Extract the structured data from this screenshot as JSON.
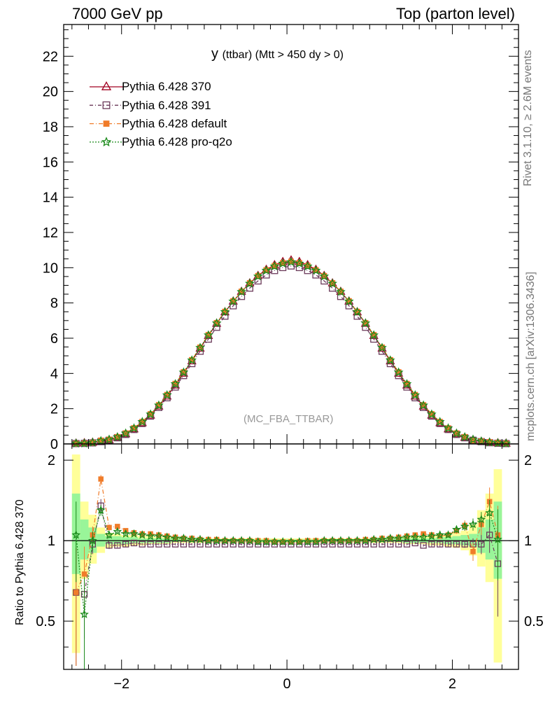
{
  "header": {
    "left": "7000 GeV pp",
    "right": "Top (parton level)"
  },
  "side_labels": {
    "rivet": "Rivet 3.1.10, ≥ 2.6M events",
    "source": "mcplots.cern.ch [arXiv:1306.3436]"
  },
  "chart_data": [
    {
      "type": "line",
      "panel": "main",
      "title": "y (ttbar) (Mtt > 450 dy > 0)",
      "title_main": "y",
      "title_rest": "(ttbar) (Mtt > 450 dy > 0)",
      "watermark": "(MC_FBA_TTBAR)",
      "xlim": [
        -2.7,
        2.8
      ],
      "ylim": [
        0,
        23.8
      ],
      "y_ticks": [
        0,
        2,
        4,
        6,
        8,
        10,
        12,
        14,
        16,
        18,
        20,
        22
      ],
      "y_tick_labels": [
        "0",
        "2",
        "4",
        "6",
        "8",
        "10",
        "12",
        "14",
        "16",
        "18",
        "20",
        "22"
      ],
      "x": [
        -2.55,
        -2.45,
        -2.35,
        -2.25,
        -2.15,
        -2.05,
        -1.95,
        -1.85,
        -1.75,
        -1.65,
        -1.55,
        -1.45,
        -1.35,
        -1.25,
        -1.15,
        -1.05,
        -0.95,
        -0.85,
        -0.75,
        -0.65,
        -0.55,
        -0.45,
        -0.35,
        -0.25,
        -0.15,
        -0.05,
        0.05,
        0.15,
        0.25,
        0.35,
        0.45,
        0.55,
        0.65,
        0.75,
        0.85,
        0.95,
        1.05,
        1.15,
        1.25,
        1.35,
        1.45,
        1.55,
        1.65,
        1.75,
        1.85,
        1.95,
        2.05,
        2.15,
        2.25,
        2.35,
        2.45,
        2.55,
        2.65
      ],
      "legend_position": "top-left",
      "series": [
        {
          "name": "Pythia 6.428 370",
          "color": "#a00020",
          "marker": "triangle-open",
          "dash": "",
          "values": [
            0.03,
            0.05,
            0.08,
            0.13,
            0.22,
            0.36,
            0.56,
            0.84,
            1.19,
            1.62,
            2.13,
            2.7,
            3.33,
            4.0,
            4.7,
            5.42,
            6.14,
            6.83,
            7.48,
            8.09,
            8.64,
            9.12,
            9.54,
            9.89,
            10.15,
            10.33,
            10.42,
            10.33,
            10.15,
            9.89,
            9.54,
            9.12,
            8.64,
            8.09,
            7.48,
            6.83,
            6.14,
            5.42,
            4.7,
            4.0,
            3.33,
            2.7,
            2.13,
            1.62,
            1.19,
            0.84,
            0.56,
            0.36,
            0.22,
            0.13,
            0.08,
            0.05,
            0.03
          ]
        },
        {
          "name": "Pythia 6.428 391",
          "color": "#6b3a5a",
          "marker": "square-open",
          "dash": "5,3,1,3",
          "values": [
            0.02,
            0.03,
            0.06,
            0.13,
            0.21,
            0.35,
            0.54,
            0.82,
            1.16,
            1.58,
            2.07,
            2.62,
            3.23,
            3.88,
            4.56,
            5.26,
            5.95,
            6.62,
            7.25,
            7.84,
            8.37,
            8.84,
            9.25,
            9.59,
            9.84,
            10.01,
            10.1,
            10.01,
            9.84,
            9.59,
            9.25,
            8.84,
            8.37,
            7.84,
            7.25,
            6.62,
            5.95,
            5.26,
            4.56,
            3.88,
            3.23,
            2.62,
            2.07,
            1.58,
            1.16,
            0.82,
            0.54,
            0.35,
            0.21,
            0.13,
            0.07,
            0.04,
            0.02
          ]
        },
        {
          "name": "Pythia 6.428 default",
          "color": "#f07c2a",
          "marker": "square-filled",
          "dash": "6,3,1,3",
          "values": [
            0.02,
            0.03,
            0.07,
            0.2,
            0.25,
            0.4,
            0.61,
            0.9,
            1.26,
            1.7,
            2.21,
            2.79,
            3.42,
            4.08,
            4.77,
            5.48,
            6.19,
            6.87,
            7.51,
            8.11,
            8.65,
            9.13,
            9.54,
            9.87,
            10.11,
            10.27,
            10.35,
            10.27,
            10.11,
            9.87,
            9.54,
            9.13,
            8.65,
            8.11,
            7.51,
            6.87,
            6.19,
            5.48,
            4.77,
            4.08,
            3.42,
            2.79,
            2.21,
            1.7,
            1.26,
            0.9,
            0.61,
            0.4,
            0.2,
            0.15,
            0.11,
            0.06,
            0.03
          ]
        },
        {
          "name": "Pythia 6.428 pro-q2o",
          "color": "#1a8a1a",
          "marker": "star",
          "dash": "2,2",
          "values": [
            0.03,
            0.03,
            0.08,
            0.17,
            0.25,
            0.39,
            0.6,
            0.89,
            1.25,
            1.68,
            2.19,
            2.77,
            3.4,
            4.06,
            4.75,
            5.46,
            6.17,
            6.85,
            7.49,
            8.09,
            8.63,
            9.1,
            9.51,
            9.84,
            10.08,
            10.24,
            10.32,
            10.24,
            10.08,
            9.84,
            9.51,
            9.1,
            8.63,
            8.09,
            7.49,
            6.85,
            6.17,
            5.46,
            4.75,
            4.06,
            3.4,
            2.77,
            2.19,
            1.68,
            1.25,
            0.89,
            0.6,
            0.39,
            0.25,
            0.15,
            0.09,
            0.05,
            0.03
          ]
        }
      ]
    },
    {
      "type": "line",
      "panel": "ratio",
      "ylabel": "Ratio to Pythia 6.428 370",
      "xlim": [
        -2.7,
        2.8
      ],
      "ylim": [
        0.33,
        2.3
      ],
      "x_ticks": [
        -2,
        0,
        2
      ],
      "x_tick_labels": [
        "−2",
        "0",
        "2"
      ],
      "y_ticks": [
        0.5,
        1,
        2
      ],
      "y_tick_labels": [
        "0.5",
        "1",
        "2"
      ],
      "x": [
        -2.55,
        -2.45,
        -2.35,
        -2.25,
        -2.15,
        -2.05,
        -1.95,
        -1.85,
        -1.75,
        -1.65,
        -1.55,
        -1.45,
        -1.35,
        -1.25,
        -1.15,
        -1.05,
        -0.95,
        -0.85,
        -0.75,
        -0.65,
        -0.55,
        -0.45,
        -0.35,
        -0.25,
        -0.15,
        -0.05,
        0.05,
        0.15,
        0.25,
        0.35,
        0.45,
        0.55,
        0.65,
        0.75,
        0.85,
        0.95,
        1.05,
        1.15,
        1.25,
        1.35,
        1.45,
        1.55,
        1.65,
        1.75,
        1.85,
        1.95,
        2.05,
        2.15,
        2.25,
        2.35,
        2.45,
        2.55
      ],
      "band_green": [
        [
          0.75,
          1.5
        ],
        [
          0.85,
          1.2
        ],
        [
          0.9,
          1.12
        ],
        [
          0.95,
          1.06
        ],
        [
          0.97,
          1.04
        ],
        [
          0.97,
          1.04
        ],
        [
          0.97,
          1.03
        ],
        [
          0.98,
          1.03
        ],
        [
          0.98,
          1.02
        ],
        [
          0.98,
          1.02
        ],
        [
          0.98,
          1.02
        ],
        [
          0.98,
          1.02
        ],
        [
          0.99,
          1.02
        ],
        [
          0.99,
          1.02
        ],
        [
          0.99,
          1.01
        ],
        [
          0.99,
          1.01
        ],
        [
          0.99,
          1.01
        ],
        [
          0.99,
          1.01
        ],
        [
          0.99,
          1.01
        ],
        [
          0.99,
          1.01
        ],
        [
          0.99,
          1.01
        ],
        [
          0.99,
          1.01
        ],
        [
          0.99,
          1.01
        ],
        [
          0.99,
          1.01
        ],
        [
          0.99,
          1.01
        ],
        [
          0.99,
          1.01
        ],
        [
          0.99,
          1.01
        ],
        [
          0.99,
          1.01
        ],
        [
          0.99,
          1.01
        ],
        [
          0.99,
          1.01
        ],
        [
          0.99,
          1.01
        ],
        [
          0.99,
          1.01
        ],
        [
          0.99,
          1.01
        ],
        [
          0.99,
          1.01
        ],
        [
          0.99,
          1.01
        ],
        [
          0.99,
          1.01
        ],
        [
          0.99,
          1.01
        ],
        [
          0.99,
          1.01
        ],
        [
          0.99,
          1.02
        ],
        [
          0.99,
          1.02
        ],
        [
          0.98,
          1.02
        ],
        [
          0.98,
          1.02
        ],
        [
          0.98,
          1.02
        ],
        [
          0.98,
          1.02
        ],
        [
          0.98,
          1.03
        ],
        [
          0.97,
          1.03
        ],
        [
          0.97,
          1.04
        ],
        [
          0.96,
          1.05
        ],
        [
          0.95,
          1.06
        ],
        [
          0.9,
          1.12
        ],
        [
          0.85,
          1.2
        ],
        [
          0.72,
          1.4
        ]
      ],
      "band_yellow": [
        [
          0.38,
          2.1
        ],
        [
          0.72,
          1.4
        ],
        [
          0.82,
          1.25
        ],
        [
          0.9,
          1.12
        ],
        [
          0.94,
          1.07
        ],
        [
          0.95,
          1.06
        ],
        [
          0.95,
          1.05
        ],
        [
          0.96,
          1.05
        ],
        [
          0.96,
          1.04
        ],
        [
          0.97,
          1.04
        ],
        [
          0.97,
          1.03
        ],
        [
          0.97,
          1.03
        ],
        [
          0.98,
          1.03
        ],
        [
          0.98,
          1.03
        ],
        [
          0.98,
          1.02
        ],
        [
          0.98,
          1.02
        ],
        [
          0.98,
          1.02
        ],
        [
          0.98,
          1.02
        ],
        [
          0.98,
          1.02
        ],
        [
          0.98,
          1.02
        ],
        [
          0.98,
          1.02
        ],
        [
          0.98,
          1.02
        ],
        [
          0.98,
          1.02
        ],
        [
          0.98,
          1.02
        ],
        [
          0.98,
          1.02
        ],
        [
          0.98,
          1.02
        ],
        [
          0.98,
          1.02
        ],
        [
          0.98,
          1.02
        ],
        [
          0.98,
          1.02
        ],
        [
          0.98,
          1.02
        ],
        [
          0.98,
          1.02
        ],
        [
          0.98,
          1.02
        ],
        [
          0.98,
          1.02
        ],
        [
          0.98,
          1.02
        ],
        [
          0.98,
          1.02
        ],
        [
          0.98,
          1.02
        ],
        [
          0.98,
          1.02
        ],
        [
          0.98,
          1.02
        ],
        [
          0.98,
          1.03
        ],
        [
          0.98,
          1.03
        ],
        [
          0.97,
          1.03
        ],
        [
          0.97,
          1.04
        ],
        [
          0.97,
          1.04
        ],
        [
          0.96,
          1.04
        ],
        [
          0.96,
          1.05
        ],
        [
          0.95,
          1.05
        ],
        [
          0.94,
          1.07
        ],
        [
          0.92,
          1.09
        ],
        [
          0.88,
          1.15
        ],
        [
          0.8,
          1.3
        ],
        [
          0.7,
          1.5
        ],
        [
          0.35,
          1.85
        ]
      ],
      "series": [
        {
          "name": "Pythia 6.428 391",
          "color": "#6b3a5a",
          "marker": "square-open",
          "dash": "5,3,1,3",
          "values": [
            0.64,
            0.63,
            0.97,
            1.35,
            0.96,
            0.96,
            0.97,
            0.98,
            0.97,
            0.97,
            0.97,
            0.97,
            0.97,
            0.97,
            0.97,
            0.97,
            0.97,
            0.97,
            0.97,
            0.97,
            0.97,
            0.97,
            0.97,
            0.97,
            0.97,
            0.97,
            0.97,
            0.97,
            0.97,
            0.97,
            0.97,
            0.97,
            0.97,
            0.97,
            0.97,
            0.97,
            0.97,
            0.97,
            0.97,
            0.97,
            0.97,
            0.98,
            0.96,
            0.97,
            0.97,
            0.97,
            0.97,
            0.97,
            0.97,
            0.97,
            1.05,
            0.82
          ],
          "errors": [
            0.3,
            0.2,
            0.08,
            0.08,
            0.03,
            0.02,
            0.02,
            0.02,
            0.01,
            0.01,
            0.01,
            0.01,
            0.01,
            0.01,
            0.01,
            0.01,
            0.01,
            0.01,
            0.01,
            0.01,
            0.01,
            0.01,
            0.01,
            0.01,
            0.01,
            0.01,
            0.01,
            0.01,
            0.01,
            0.01,
            0.01,
            0.01,
            0.01,
            0.01,
            0.01,
            0.01,
            0.01,
            0.01,
            0.01,
            0.01,
            0.01,
            0.01,
            0.01,
            0.02,
            0.02,
            0.02,
            0.02,
            0.03,
            0.05,
            0.08,
            0.15,
            0.3
          ]
        },
        {
          "name": "Pythia 6.428 default",
          "color": "#f07c2a",
          "marker": "square-filled",
          "dash": "6,3,1,3",
          "values": [
            0.64,
            0.75,
            1.05,
            1.7,
            1.12,
            1.13,
            1.09,
            1.07,
            1.06,
            1.06,
            1.05,
            1.04,
            1.03,
            1.02,
            1.02,
            1.01,
            1.01,
            1.01,
            1.0,
            1.0,
            1.0,
            1.0,
            1.0,
            1.0,
            0.99,
            0.99,
            0.99,
            0.99,
            1.0,
            1.0,
            1.0,
            1.0,
            1.0,
            1.0,
            1.0,
            1.01,
            1.01,
            1.02,
            1.02,
            1.03,
            1.04,
            1.05,
            1.06,
            1.05,
            1.04,
            1.05,
            1.09,
            1.14,
            0.91,
            1.15,
            1.4,
            1.05
          ],
          "errors": [
            0.3,
            0.2,
            0.08,
            0.06,
            0.03,
            0.02,
            0.02,
            0.02,
            0.01,
            0.01,
            0.01,
            0.01,
            0.01,
            0.01,
            0.01,
            0.01,
            0.01,
            0.01,
            0.01,
            0.01,
            0.01,
            0.01,
            0.01,
            0.01,
            0.01,
            0.01,
            0.01,
            0.01,
            0.01,
            0.01,
            0.01,
            0.01,
            0.01,
            0.01,
            0.01,
            0.01,
            0.01,
            0.01,
            0.01,
            0.01,
            0.01,
            0.01,
            0.02,
            0.02,
            0.02,
            0.02,
            0.03,
            0.05,
            0.07,
            0.1,
            0.18,
            0.3
          ]
        },
        {
          "name": "Pythia 6.428 pro-q2o",
          "color": "#1a8a1a",
          "marker": "star",
          "dash": "2,2",
          "values": [
            1.05,
            0.53,
            1.0,
            1.3,
            1.05,
            1.08,
            1.06,
            1.06,
            1.05,
            1.04,
            1.04,
            1.03,
            1.02,
            1.02,
            1.01,
            1.01,
            1.0,
            1.0,
            1.0,
            1.0,
            1.0,
            1.0,
            0.99,
            0.99,
            0.99,
            0.99,
            0.99,
            0.99,
            0.99,
            0.99,
            1.0,
            1.0,
            1.0,
            1.0,
            1.0,
            1.0,
            1.01,
            1.01,
            1.02,
            1.02,
            1.03,
            1.03,
            1.03,
            1.04,
            1.05,
            1.05,
            1.1,
            1.13,
            1.15,
            1.2,
            1.27,
            1.01
          ],
          "errors": [
            0.35,
            0.2,
            0.08,
            0.06,
            0.03,
            0.02,
            0.02,
            0.02,
            0.01,
            0.01,
            0.01,
            0.01,
            0.01,
            0.01,
            0.01,
            0.01,
            0.01,
            0.01,
            0.01,
            0.01,
            0.01,
            0.01,
            0.01,
            0.01,
            0.01,
            0.01,
            0.01,
            0.01,
            0.01,
            0.01,
            0.01,
            0.01,
            0.01,
            0.01,
            0.01,
            0.01,
            0.01,
            0.01,
            0.01,
            0.01,
            0.01,
            0.01,
            0.02,
            0.02,
            0.02,
            0.02,
            0.03,
            0.04,
            0.06,
            0.08,
            0.15,
            0.3
          ]
        }
      ]
    }
  ]
}
